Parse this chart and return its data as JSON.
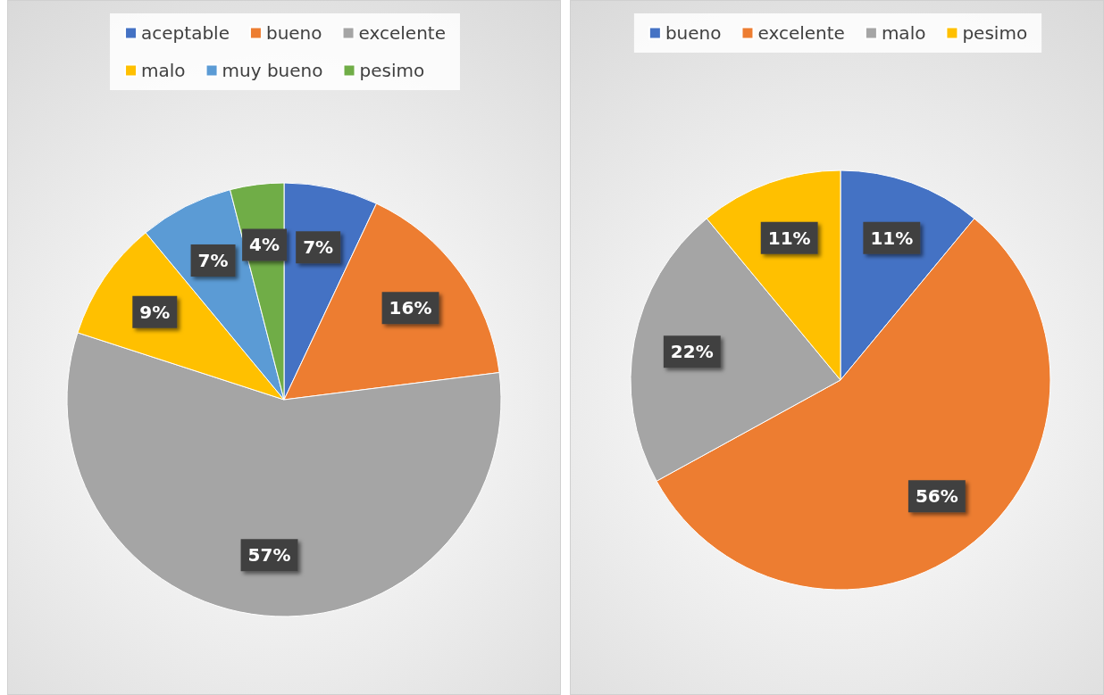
{
  "chart_data": [
    {
      "type": "pie",
      "categories": [
        "aceptable",
        "bueno",
        "excelente",
        "malo",
        "muy bueno",
        "pesimo"
      ],
      "values": [
        7,
        16,
        57,
        9,
        7,
        4
      ],
      "value_labels": [
        "7%",
        "16%",
        "57%",
        "9%",
        "7%",
        "4%"
      ],
      "colors": [
        "#4472c4",
        "#ed7d31",
        "#a5a5a5",
        "#ffc000",
        "#5b9bd5",
        "#70ad47"
      ],
      "legend": "top"
    },
    {
      "type": "pie",
      "categories": [
        "bueno",
        "excelente",
        "malo",
        "pesimo"
      ],
      "values": [
        11,
        56,
        22,
        11
      ],
      "value_labels": [
        "11%",
        "56%",
        "22%",
        "11%"
      ],
      "colors": [
        "#4472c4",
        "#ed7d31",
        "#a5a5a5",
        "#ffc000"
      ],
      "legend": "top"
    }
  ]
}
